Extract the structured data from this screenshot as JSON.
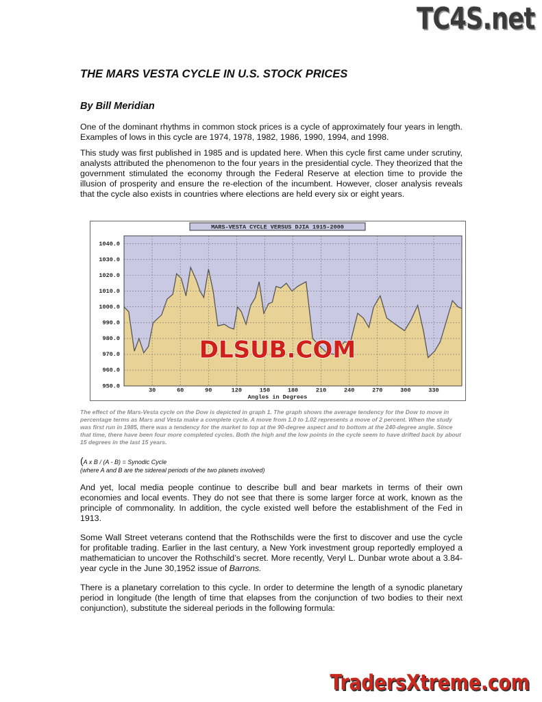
{
  "header": {
    "logo": "TC4S.net"
  },
  "title": "THE MARS VESTA CYCLE IN U.S. STOCK PRICES",
  "author": "By Bill Meridian",
  "intro": [
    "One of the dominant rhythms in common stock prices is a cycle of approximately four years in length. Examples of lows in this cycle are 1974, 1978, 1982, 1986, 1990, 1994, and 1998.",
    "This study was first published in 1985 and is updated here. When this cycle first came under scrutiny, analysts attributed the phenomenon to the four years in the presidential cycle. They theorized that the government stimulated the economy through the Federal Reserve at election time to provide the illusion of prosperity and ensure the re-election of the incumbent. However, closer analysis reveals that the cycle also exists in countries where elections are held every six or eight years."
  ],
  "figure": {
    "watermark": "DLSUB.COM",
    "chart_data": {
      "type": "area",
      "title": "MARS-VESTA CYCLE VERSUS DJIA 1915-2000",
      "x_label": "Angles in Degrees",
      "grid": true,
      "background": "#c9c9e3",
      "series": [
        {
          "color": "#e8d296",
          "x": [
            0,
            5,
            11,
            16,
            21,
            26,
            31,
            40,
            46,
            52,
            56,
            61,
            66,
            71,
            77,
            81,
            85,
            90,
            95,
            100,
            107,
            112,
            117,
            121,
            125,
            130,
            135,
            140,
            144,
            149,
            154,
            158,
            162,
            167,
            173,
            179,
            185,
            194,
            201,
            209,
            216,
            224,
            235,
            241,
            249,
            255,
            261,
            266,
            273,
            280,
            287,
            294,
            299,
            306,
            313,
            319,
            324,
            331,
            337,
            344,
            350,
            356,
            360
          ],
          "values": [
            1000,
            997,
            972,
            980,
            971,
            975,
            990,
            995,
            1005,
            1008,
            1021,
            1018,
            1007,
            1025,
            1017,
            1010,
            1006,
            1024,
            1010,
            988,
            989,
            987,
            986,
            1000,
            997,
            989,
            1001,
            1006,
            1016,
            996,
            1002,
            1003,
            1013,
            1012,
            1015,
            1010,
            1013,
            1016,
            980,
            975,
            971,
            970,
            978,
            977,
            996,
            993,
            987,
            1000,
            1007,
            993,
            990,
            987,
            985,
            992,
            1001,
            985,
            968,
            972,
            978,
            992,
            1004,
            1000,
            999
          ]
        }
      ],
      "xlim": [
        0,
        360
      ],
      "xticks": [
        30,
        60,
        90,
        120,
        150,
        180,
        210,
        240,
        270,
        300,
        330
      ],
      "ylim": [
        950,
        1045
      ],
      "yticks": [
        {
          "value": 950,
          "label": "950.0"
        },
        {
          "value": 960,
          "label": "960.0"
        },
        {
          "value": 970,
          "label": "970.0"
        },
        {
          "value": 980,
          "label": "980.0"
        },
        {
          "value": 990,
          "label": "990.0"
        },
        {
          "value": 1000,
          "label": "1000.0"
        },
        {
          "value": 1010,
          "label": "1010.0"
        },
        {
          "value": 1020,
          "label": "1020.0"
        },
        {
          "value": 1030,
          "label": "1030.0"
        },
        {
          "value": 1040,
          "label": "1040.0"
        }
      ]
    },
    "caption": "The effect of the Mars-Vesta cycle on the Dow is depicted in graph 1. The graph shows the average tendency for the Dow to move in percentage terms as Mars and Vesta make a complete cycle. A move from 1.0 to 1.02 represents a move of 2 percent. When the study was first run in 1985, there was a tendency for the market to top at the 90-degree aspect and to bottom at the 240-degree angle. Since that time, there have been four more completed cycles. Both the high and the low points in the cycle seem to have drifted back by about 15 degrees in the last 15 years."
  },
  "formula": {
    "paren": "(",
    "text": "A x B / (A - B) = Synodic Cycle",
    "note": "(where A and B are the sidereal periods of the two planets involved)"
  },
  "body": [
    {
      "text": "And yet, local media people continue to describe bull and bear markets in terms of their own economies and local events. They do not see that there is some larger force at work, known as the principle of commonality. In addition, the cycle existed well before the establishment of the Fed in 1913."
    },
    {
      "text": "Some Wall Street veterans contend that the Rothschilds were the first to discover and use the cycle for profitable trading. Earlier in the last century, a New York investment group reportedly employed a mathematician to uncover the Rothschild’s secret. More recently, Veryl L. Dunbar wrote about a 3.84-year cycle in the June 30,1952 issue of ",
      "em": "Barrons."
    },
    {
      "text": "There is a planetary correlation to this cycle. In order to determine the length of a synodic planetary period in longitude (the length of time that elapses from the conjunction of two bodies to their next conjunction), substitute the sidereal periods in the following formula:"
    }
  ],
  "footer": {
    "logo": "TradersXtreme.com"
  }
}
